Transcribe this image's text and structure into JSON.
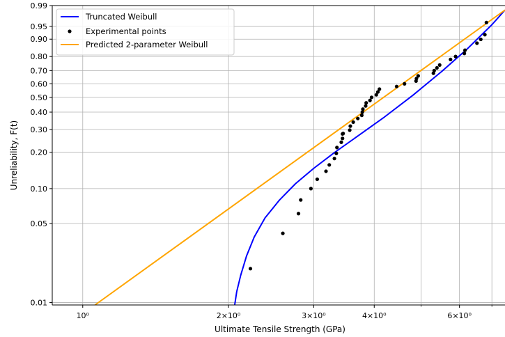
{
  "chart_data": {
    "type": "line",
    "title": "",
    "xlabel": "Ultimate Tensile Strength (GPa)",
    "ylabel": "Unreliability, F(t)",
    "x_scale": "log",
    "y_scale": "weibull",
    "xlim": [
      0.865,
      7.45
    ],
    "ylim": [
      0.0095,
      0.99
    ],
    "grid": true,
    "legend_position": "top-left",
    "x_ticks": [
      {
        "value": 1,
        "label": "10⁰"
      },
      {
        "value": 2,
        "label": "2×10⁰"
      },
      {
        "value": 3,
        "label": "3×10⁰"
      },
      {
        "value": 4,
        "label": "4×10⁰"
      },
      {
        "value": 6,
        "label": "6×10⁰"
      }
    ],
    "x_minor_ticks": [
      5,
      7
    ],
    "y_ticks": [
      {
        "value": 0.01,
        "label": "0.01"
      },
      {
        "value": 0.05,
        "label": "0.05"
      },
      {
        "value": 0.1,
        "label": "0.10"
      },
      {
        "value": 0.2,
        "label": "0.20"
      },
      {
        "value": 0.3,
        "label": "0.30"
      },
      {
        "value": 0.4,
        "label": "0.40"
      },
      {
        "value": 0.5,
        "label": "0.50"
      },
      {
        "value": 0.6,
        "label": "0.60"
      },
      {
        "value": 0.7,
        "label": "0.70"
      },
      {
        "value": 0.8,
        "label": "0.80"
      },
      {
        "value": 0.9,
        "label": "0.90"
      },
      {
        "value": 0.95,
        "label": "0.95"
      },
      {
        "value": 0.99,
        "label": "0.99"
      }
    ],
    "series": [
      {
        "name": "Truncated Weibull",
        "kind": "line",
        "color": "#0000ff",
        "x": [
          2.06,
          2.08,
          2.12,
          2.18,
          2.26,
          2.38,
          2.55,
          2.75,
          3.0,
          3.3,
          3.7,
          4.2,
          4.8,
          5.5,
          6.2,
          7.0,
          7.45
        ],
        "y": [
          0.0095,
          0.0125,
          0.0175,
          0.026,
          0.038,
          0.056,
          0.08,
          0.11,
          0.148,
          0.197,
          0.268,
          0.37,
          0.513,
          0.69,
          0.843,
          0.955,
          0.985
        ]
      },
      {
        "name": "Experimental points",
        "kind": "scatter",
        "color": "#000000",
        "x": [
          2.22,
          2.59,
          2.79,
          2.82,
          2.96,
          3.05,
          3.18,
          3.23,
          3.31,
          3.34,
          3.35,
          3.42,
          3.44,
          3.44,
          3.45,
          3.56,
          3.57,
          3.62,
          3.7,
          3.77,
          3.78,
          3.79,
          3.84,
          3.85,
          3.92,
          3.95,
          4.04,
          4.07,
          4.1,
          4.45,
          4.62,
          4.88,
          4.89,
          4.93,
          5.3,
          5.32,
          5.39,
          5.46,
          5.75,
          5.89,
          6.14,
          6.16,
          6.52,
          6.64,
          6.77,
          6.82
        ],
        "y": [
          0.02,
          0.041,
          0.061,
          0.08,
          0.1,
          0.12,
          0.14,
          0.158,
          0.178,
          0.196,
          0.218,
          0.24,
          0.257,
          0.278,
          0.28,
          0.297,
          0.318,
          0.34,
          0.361,
          0.38,
          0.4,
          0.419,
          0.44,
          0.461,
          0.478,
          0.5,
          0.518,
          0.539,
          0.56,
          0.58,
          0.6,
          0.621,
          0.64,
          0.66,
          0.68,
          0.7,
          0.72,
          0.741,
          0.78,
          0.8,
          0.82,
          0.84,
          0.88,
          0.899,
          0.92,
          0.961
        ]
      },
      {
        "name": "Predicted 2-parameter Weibull",
        "kind": "line",
        "color": "#ffa500",
        "x": [
          1.06,
          7.45
        ],
        "y": [
          0.0095,
          0.985
        ]
      }
    ]
  }
}
